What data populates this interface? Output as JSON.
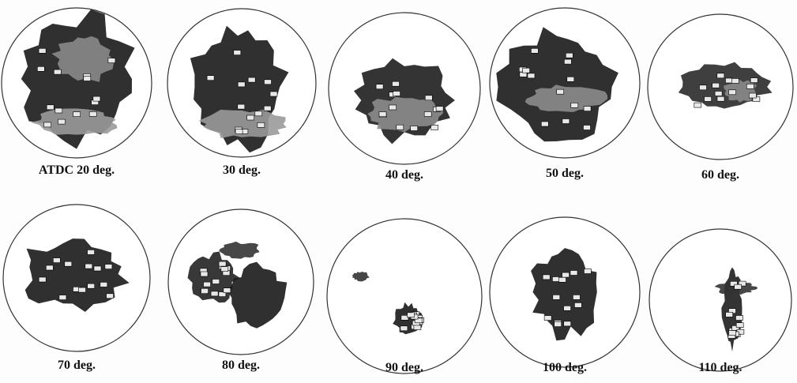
{
  "panels": [
    {
      "label": "ATDC 20 deg."
    },
    {
      "label": "30 deg."
    },
    {
      "label": "40 deg."
    },
    {
      "label": "50 deg."
    },
    {
      "label": "60 deg."
    },
    {
      "label": "70 deg."
    },
    {
      "label": "80 deg."
    },
    {
      "label": "90 deg."
    },
    {
      "label": "100 deg."
    },
    {
      "label": "110 deg."
    }
  ]
}
